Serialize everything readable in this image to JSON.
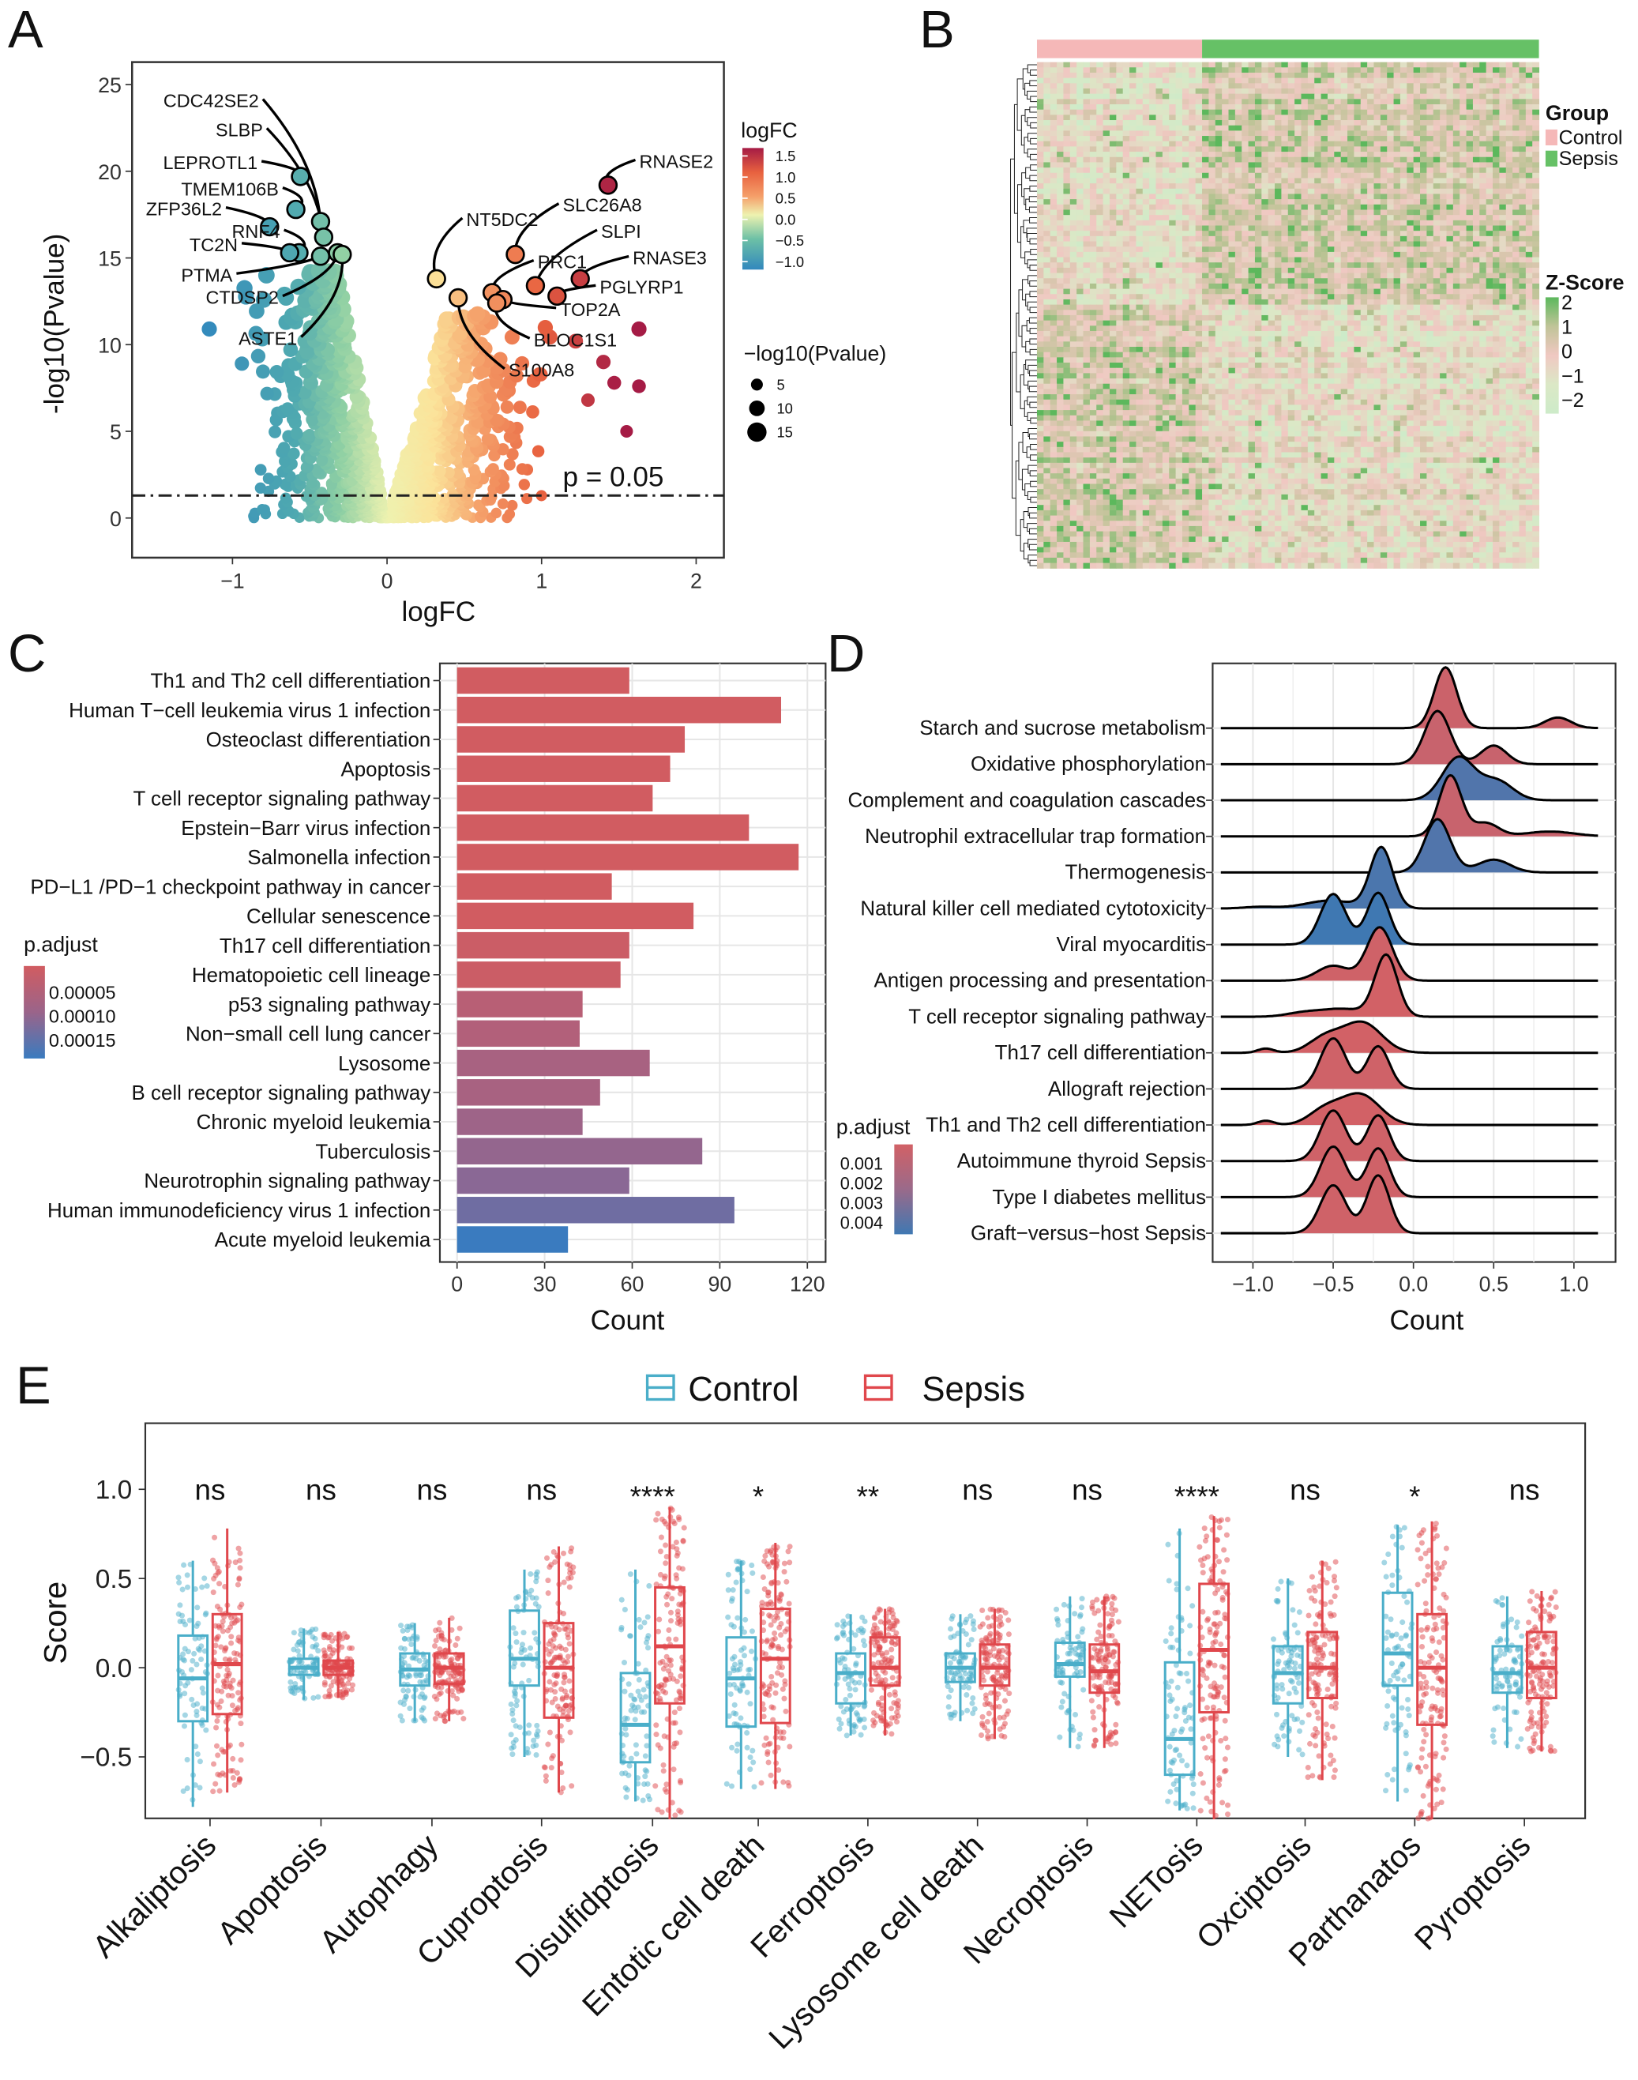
{
  "chart_data": [
    {
      "panel": "A",
      "type": "scatter",
      "title": "",
      "xlabel": "logFC",
      "ylabel": "-log10(Pvalue)",
      "xlim": [
        -1.65,
        2.18
      ],
      "ylim": [
        -2.3,
        26.3
      ],
      "xticks": [
        -1,
        0,
        1,
        2
      ],
      "yticks": [
        0,
        5,
        10,
        15,
        20,
        25
      ],
      "threshold": {
        "y": 1.3,
        "label": "p = 0.05"
      },
      "color_legend": {
        "title": "logFC",
        "ticks": [
          "1.5",
          "1.0",
          "0.5",
          "0.0",
          "−0.5",
          "−1.0"
        ]
      },
      "size_legend": {
        "title": "−log10(Pvalue)",
        "ticks": [
          "5",
          "10",
          "15"
        ]
      },
      "labeled_points": [
        {
          "gene": "CDC42SE2",
          "logFC": -0.43,
          "neglog10p": 17.1
        },
        {
          "gene": "SLBP",
          "logFC": -0.41,
          "neglog10p": 16.2
        },
        {
          "gene": "LEPROTL1",
          "logFC": -0.56,
          "neglog10p": 19.7
        },
        {
          "gene": "TMEM106B",
          "logFC": -0.59,
          "neglog10p": 17.8
        },
        {
          "gene": "ZFP36L2",
          "logFC": -0.76,
          "neglog10p": 16.8
        },
        {
          "gene": "RNF4",
          "logFC": -0.57,
          "neglog10p": 15.3
        },
        {
          "gene": "TC2N",
          "logFC": -0.63,
          "neglog10p": 15.3
        },
        {
          "gene": "PTMA",
          "logFC": -0.43,
          "neglog10p": 15.1
        },
        {
          "gene": "CTDSP2",
          "logFC": -0.32,
          "neglog10p": 15.3
        },
        {
          "gene": "ASTE1",
          "logFC": -0.29,
          "neglog10p": 15.2
        },
        {
          "gene": "RNASE2",
          "logFC": 1.43,
          "neglog10p": 19.2
        },
        {
          "gene": "SLC26A8",
          "logFC": 0.83,
          "neglog10p": 15.2
        },
        {
          "gene": "NT5DC2",
          "logFC": 0.32,
          "neglog10p": 13.8
        },
        {
          "gene": "SLPI",
          "logFC": 0.96,
          "neglog10p": 13.4
        },
        {
          "gene": "PRC1",
          "logFC": 0.68,
          "neglog10p": 13.0
        },
        {
          "gene": "RNASE3",
          "logFC": 1.25,
          "neglog10p": 13.8
        },
        {
          "gene": "PGLYRP1",
          "logFC": 1.1,
          "neglog10p": 12.8
        },
        {
          "gene": "TOP2A",
          "logFC": 0.75,
          "neglog10p": 12.6
        },
        {
          "gene": "BLOC1S1",
          "logFC": 0.71,
          "neglog10p": 12.4
        },
        {
          "gene": "S100A8",
          "logFC": 0.46,
          "neglog10p": 12.7
        }
      ],
      "extra_points": [
        {
          "logFC": -1.15,
          "neglog10p": 10.9
        },
        {
          "logFC": 1.63,
          "neglog10p": 10.9
        },
        {
          "logFC": 1.4,
          "neglog10p": 9.0
        },
        {
          "logFC": 1.63,
          "neglog10p": 7.6
        },
        {
          "logFC": 1.47,
          "neglog10p": 7.8
        },
        {
          "logFC": 1.55,
          "neglog10p": 5.0
        },
        {
          "logFC": 1.22,
          "neglog10p": 10.2
        },
        {
          "logFC": 1.3,
          "neglog10p": 6.8
        }
      ],
      "colors": {
        "low": "#3288bd",
        "mid": "#eef2b0",
        "high": "#a51b45"
      }
    },
    {
      "panel": "B",
      "type": "heatmap",
      "group_legend": {
        "title": "Group",
        "items": [
          {
            "label": "Control",
            "color": "#f5b8b8"
          },
          {
            "label": "Sepsis",
            "color": "#66c166"
          }
        ]
      },
      "zscore_legend": {
        "title": "Z-Score",
        "ticks": [
          "2",
          "1",
          "0",
          "−1",
          "−2"
        ]
      },
      "groups": {
        "control_samples": 25,
        "sepsis_samples": 51
      },
      "gene_clusters": [
        {
          "name": "up_in_sepsis",
          "rows": 46
        },
        {
          "name": "down_in_sepsis",
          "rows": 50
        }
      ]
    },
    {
      "panel": "C",
      "type": "bar",
      "orientation": "horizontal",
      "xlabel": "Count",
      "xticks": [
        0,
        30,
        60,
        90,
        120
      ],
      "xlim": [
        -6,
        126
      ],
      "legend": {
        "title": "p.adjust",
        "ticks": [
          "0.00005",
          "0.00010",
          "0.00015"
        ]
      },
      "categories": [
        "Th1 and Th2 cell differentiation",
        "Human T−cell leukemia virus 1 infection",
        "Osteoclast differentiation",
        "Apoptosis",
        "T cell receptor signaling pathway",
        "Epstein−Barr virus infection",
        "Salmonella infection",
        "PD−L1 /PD−1 checkpoint pathway in cancer",
        "Cellular senescence",
        "Th17 cell differentiation",
        "Hematopoietic cell lineage",
        "p53 signaling pathway",
        "Non−small cell lung cancer",
        "Lysosome",
        "B cell receptor signaling pathway",
        "Chronic myeloid leukemia",
        "Tuberculosis",
        "Neurotrophin signaling pathway",
        "Human immunodeficiency virus 1 infection",
        "Acute myeloid leukemia"
      ],
      "values": [
        59,
        111,
        78,
        73,
        67,
        100,
        117,
        53,
        81,
        59,
        56,
        43,
        42,
        66,
        49,
        43,
        84,
        59,
        95,
        38
      ],
      "p_adjust": [
        1e-05,
        1e-05,
        1e-05,
        1e-05,
        1e-05,
        1e-05,
        1e-05,
        1e-05,
        1e-05,
        2e-05,
        2e-05,
        5e-05,
        6e-05,
        7e-05,
        7e-05,
        8e-05,
        9e-05,
        0.0001,
        0.00012,
        0.00017
      ]
    },
    {
      "panel": "D",
      "type": "ridgeline",
      "xlabel": "Count",
      "xticks": [
        -1.0,
        -0.5,
        0.0,
        0.5,
        1.0
      ],
      "xlim": [
        -1.22,
        1.3
      ],
      "legend": {
        "title": "p.adjust",
        "ticks": [
          "0.001",
          "0.002",
          "0.003",
          "0.004"
        ]
      },
      "series": [
        {
          "name": "Starch and sucrose metabolism",
          "p_adjust": 0.0012,
          "peaks": [
            [
              0.2,
              0.07,
              1
            ],
            [
              0.9,
              0.08,
              0.2
            ]
          ]
        },
        {
          "name": "Oxidative phosphorylation",
          "p_adjust": 0.0013,
          "peaks": [
            [
              0.15,
              0.08,
              1
            ],
            [
              0.5,
              0.08,
              0.35
            ]
          ]
        },
        {
          "name": "Complement and coagulation cascades",
          "p_adjust": 0.0037,
          "peaks": [
            [
              0.28,
              0.1,
              1
            ],
            [
              0.52,
              0.1,
              0.45
            ]
          ]
        },
        {
          "name": "Neutrophil extracellular trap formation",
          "p_adjust": 0.0013,
          "peaks": [
            [
              0.23,
              0.07,
              1
            ],
            [
              0.45,
              0.08,
              0.25
            ],
            [
              0.85,
              0.15,
              0.17
            ]
          ]
        },
        {
          "name": "Thermogenesis",
          "p_adjust": 0.0037,
          "peaks": [
            [
              0.15,
              0.08,
              1
            ],
            [
              0.5,
              0.1,
              0.3
            ]
          ]
        },
        {
          "name": "Natural killer cell mediated cytotoxicity",
          "p_adjust": 0.0038,
          "peaks": [
            [
              -0.2,
              0.07,
              1
            ],
            [
              -0.52,
              0.15,
              0.28
            ],
            [
              -0.95,
              0.1,
              0.04
            ]
          ]
        },
        {
          "name": "Viral myocarditis",
          "p_adjust": 0.0042,
          "peaks": [
            [
              -0.5,
              0.08,
              0.95
            ],
            [
              -0.22,
              0.07,
              0.85
            ]
          ]
        },
        {
          "name": "Antigen processing and presentation",
          "p_adjust": 0.0011,
          "peaks": [
            [
              -0.21,
              0.08,
              1
            ],
            [
              -0.5,
              0.1,
              0.35
            ]
          ]
        },
        {
          "name": "T cell receptor signaling pathway",
          "p_adjust": 0.001,
          "peaks": [
            [
              -0.17,
              0.07,
              1
            ],
            [
              -0.45,
              0.15,
              0.28
            ],
            [
              -0.7,
              0.1,
              0.07
            ]
          ]
        },
        {
          "name": "Th17 cell differentiation",
          "p_adjust": 0.001,
          "peaks": [
            [
              -0.32,
              0.12,
              0.85
            ],
            [
              -0.55,
              0.1,
              0.35
            ],
            [
              -0.92,
              0.05,
              0.05
            ]
          ]
        },
        {
          "name": "Allograft rejection",
          "p_adjust": 0.0011,
          "peaks": [
            [
              -0.5,
              0.08,
              0.95
            ],
            [
              -0.22,
              0.07,
              0.7
            ]
          ]
        },
        {
          "name": "Th1 and Th2 cell differentiation",
          "p_adjust": 0.001,
          "peaks": [
            [
              -0.33,
              0.12,
              0.85
            ],
            [
              -0.55,
              0.1,
              0.35
            ],
            [
              -0.92,
              0.05,
              0.05
            ]
          ]
        },
        {
          "name": "Autoimmune thyroid Sepsis",
          "p_adjust": 0.0011,
          "peaks": [
            [
              -0.5,
              0.08,
              0.95
            ],
            [
              -0.22,
              0.07,
              0.75
            ]
          ]
        },
        {
          "name": "Type I diabetes mellitus",
          "p_adjust": 0.0011,
          "peaks": [
            [
              -0.5,
              0.08,
              0.95
            ],
            [
              -0.22,
              0.07,
              0.8
            ]
          ]
        },
        {
          "name": "Graft−versus−host Sepsis",
          "p_adjust": 0.0011,
          "peaks": [
            [
              -0.5,
              0.08,
              0.9
            ],
            [
              -0.22,
              0.07,
              0.95
            ]
          ]
        }
      ]
    },
    {
      "panel": "E",
      "type": "boxplot",
      "ylabel": "Score",
      "yticks": [
        1.0,
        0.5,
        0.0,
        -0.5
      ],
      "ylim": [
        -0.85,
        1.37
      ],
      "legend": [
        {
          "label": "Control",
          "color": "#4aaec9"
        },
        {
          "label": "Sepsis",
          "color": "#e0474c"
        }
      ],
      "categories": [
        "Alkaliptosis",
        "Apoptosis",
        "Autophagy",
        "Cuproptosis",
        "Disulfidptosis",
        "Entotic cell death",
        "Ferroptosis",
        "Lysosome cell death",
        "Necroptosis",
        "NETosis",
        "Oxciptosis",
        "Parthanatos",
        "Pyroptosis"
      ],
      "significance": [
        "ns",
        "ns",
        "ns",
        "ns",
        "****",
        "*",
        "**",
        "ns",
        "ns",
        "****",
        "ns",
        "*",
        "ns"
      ],
      "control": [
        {
          "min": -0.78,
          "q1": -0.3,
          "median": -0.06,
          "q3": 0.18,
          "max": 0.6
        },
        {
          "min": -0.18,
          "q1": -0.04,
          "median": 0.0,
          "q3": 0.05,
          "max": 0.22
        },
        {
          "min": -0.3,
          "q1": -0.1,
          "median": -0.01,
          "q3": 0.08,
          "max": 0.25
        },
        {
          "min": -0.5,
          "q1": -0.1,
          "median": 0.05,
          "q3": 0.32,
          "max": 0.55
        },
        {
          "min": -0.75,
          "q1": -0.53,
          "median": -0.32,
          "q3": -0.03,
          "max": 0.55
        },
        {
          "min": -0.68,
          "q1": -0.33,
          "median": -0.06,
          "q3": 0.17,
          "max": 0.6
        },
        {
          "min": -0.38,
          "q1": -0.2,
          "median": -0.03,
          "q3": 0.08,
          "max": 0.3
        },
        {
          "min": -0.3,
          "q1": -0.08,
          "median": 0.0,
          "q3": 0.08,
          "max": 0.3
        },
        {
          "min": -0.45,
          "q1": -0.05,
          "median": 0.02,
          "q3": 0.14,
          "max": 0.4
        },
        {
          "min": -0.8,
          "q1": -0.6,
          "median": -0.4,
          "q3": 0.03,
          "max": 0.78
        },
        {
          "min": -0.5,
          "q1": -0.2,
          "median": -0.03,
          "q3": 0.12,
          "max": 0.5
        },
        {
          "min": -0.75,
          "q1": -0.1,
          "median": 0.08,
          "q3": 0.42,
          "max": 0.8
        },
        {
          "min": -0.45,
          "q1": -0.14,
          "median": -0.03,
          "q3": 0.12,
          "max": 0.4
        }
      ],
      "sepsis": [
        {
          "min": -0.7,
          "q1": -0.26,
          "median": 0.02,
          "q3": 0.3,
          "max": 0.78
        },
        {
          "min": -0.17,
          "q1": -0.04,
          "median": 0.0,
          "q3": 0.04,
          "max": 0.2
        },
        {
          "min": -0.3,
          "q1": -0.09,
          "median": 0.0,
          "q3": 0.08,
          "max": 0.28
        },
        {
          "min": -0.7,
          "q1": -0.28,
          "median": 0.0,
          "q3": 0.25,
          "max": 0.68
        },
        {
          "min": -0.85,
          "q1": -0.2,
          "median": 0.12,
          "q3": 0.45,
          "max": 0.9
        },
        {
          "min": -0.68,
          "q1": -0.31,
          "median": 0.05,
          "q3": 0.33,
          "max": 0.7
        },
        {
          "min": -0.38,
          "q1": -0.1,
          "median": 0.0,
          "q3": 0.17,
          "max": 0.33
        },
        {
          "min": -0.4,
          "q1": -0.1,
          "median": 0.0,
          "q3": 0.13,
          "max": 0.33
        },
        {
          "min": -0.45,
          "q1": -0.14,
          "median": -0.02,
          "q3": 0.13,
          "max": 0.4
        },
        {
          "min": -0.85,
          "q1": -0.25,
          "median": 0.1,
          "q3": 0.47,
          "max": 0.85
        },
        {
          "min": -0.63,
          "q1": -0.17,
          "median": 0.0,
          "q3": 0.2,
          "max": 0.6
        },
        {
          "min": -0.85,
          "q1": -0.32,
          "median": 0.0,
          "q3": 0.3,
          "max": 0.82
        },
        {
          "min": -0.47,
          "q1": -0.17,
          "median": 0.0,
          "q3": 0.2,
          "max": 0.43
        }
      ]
    }
  ]
}
